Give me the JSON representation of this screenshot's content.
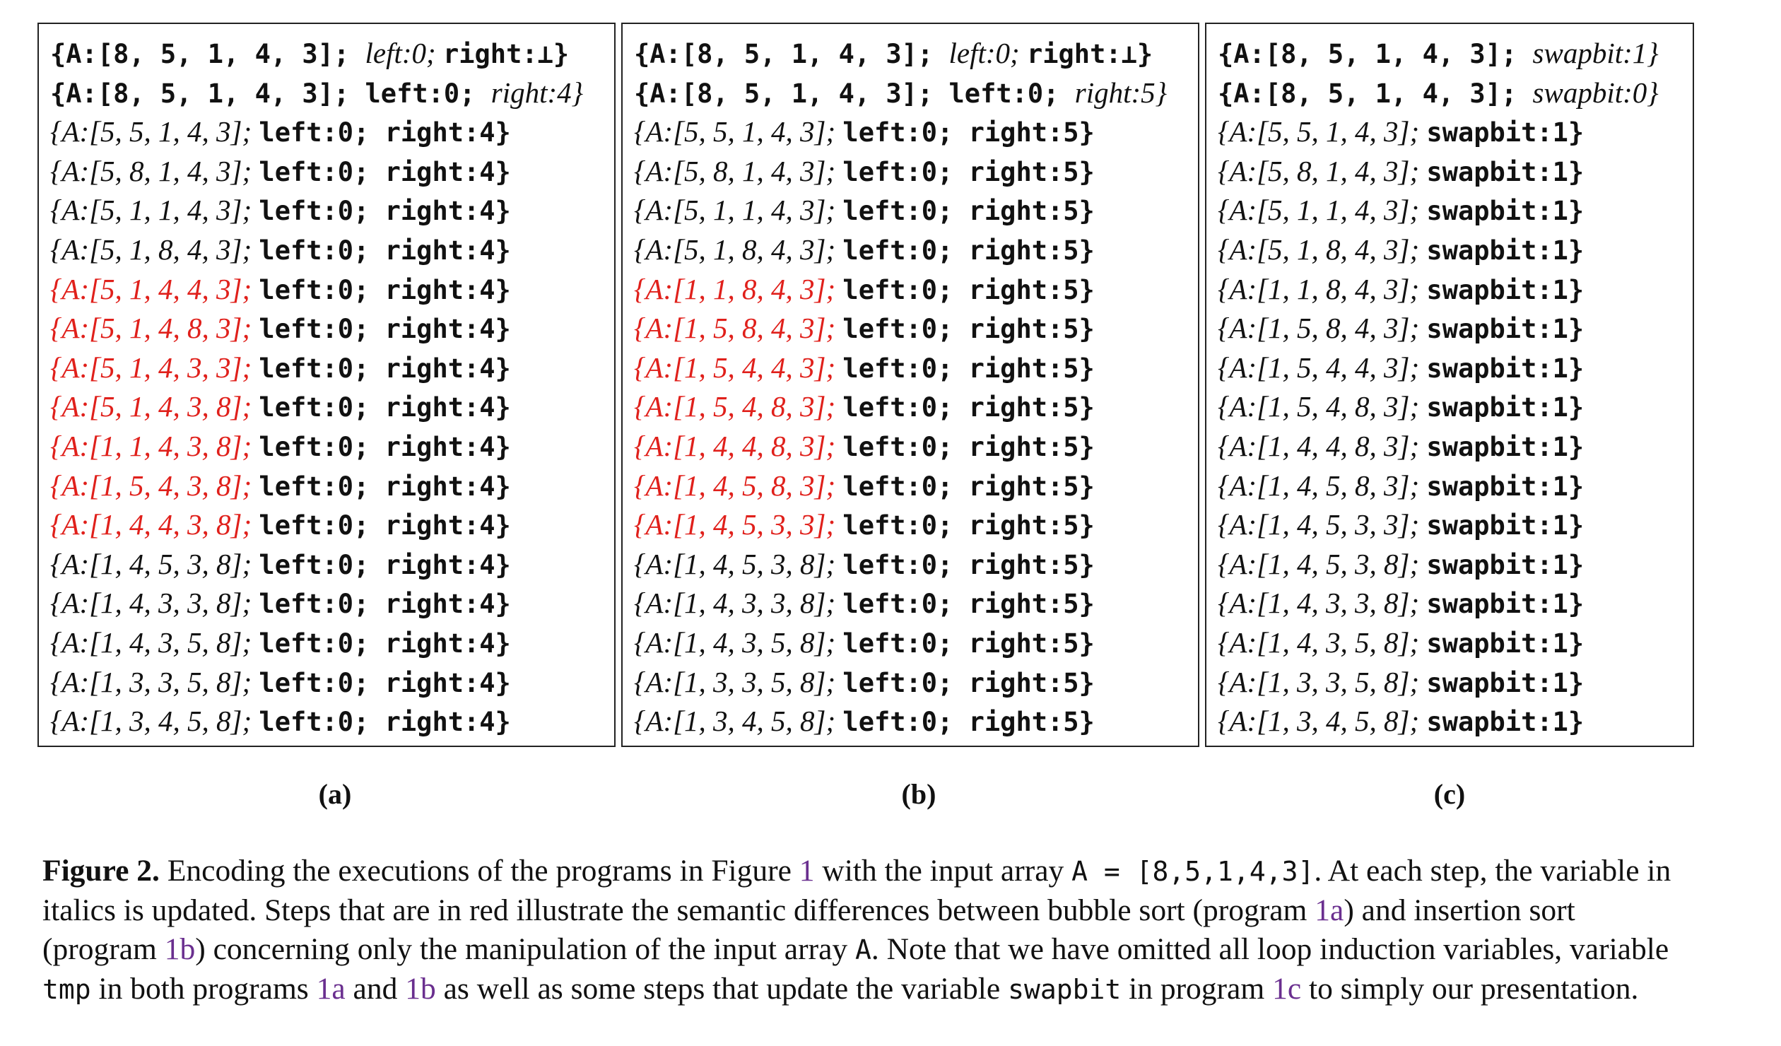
{
  "panels": [
    {
      "id": "a",
      "label": "(a)",
      "rows": [
        {
          "parts": [
            {
              "t": "{A:[8, 5, 1, 4, 3]; ",
              "s": "mono"
            },
            {
              "t": "left:0; ",
              "s": "it"
            },
            {
              "t": "right:⊥}",
              "s": "mono"
            }
          ],
          "red": false
        },
        {
          "parts": [
            {
              "t": "{A:[8, 5, 1, 4, 3]; left:0; ",
              "s": "mono"
            },
            {
              "t": "right:4}",
              "s": "it"
            }
          ],
          "red": false
        },
        {
          "parts": [
            {
              "t": "{A:[5, 5, 1, 4, 3]; ",
              "s": "it"
            },
            {
              "t": "left:0; right:4}",
              "s": "mono"
            }
          ],
          "red": false
        },
        {
          "parts": [
            {
              "t": "{A:[5, 8, 1, 4, 3]; ",
              "s": "it"
            },
            {
              "t": "left:0; right:4}",
              "s": "mono"
            }
          ],
          "red": false
        },
        {
          "parts": [
            {
              "t": "{A:[5, 1, 1, 4, 3]; ",
              "s": "it"
            },
            {
              "t": "left:0; right:4}",
              "s": "mono"
            }
          ],
          "red": false
        },
        {
          "parts": [
            {
              "t": "{A:[5, 1, 8, 4, 3]; ",
              "s": "it"
            },
            {
              "t": "left:0; right:4}",
              "s": "mono"
            }
          ],
          "red": false
        },
        {
          "parts": [
            {
              "t": "{A:[5, 1, 4, 4, 3]; ",
              "s": "it"
            },
            {
              "t": "left:0; right:4}",
              "s": "mono"
            }
          ],
          "red": true
        },
        {
          "parts": [
            {
              "t": "{A:[5, 1, 4, 8, 3]; ",
              "s": "it"
            },
            {
              "t": "left:0; right:4}",
              "s": "mono"
            }
          ],
          "red": true
        },
        {
          "parts": [
            {
              "t": "{A:[5, 1, 4, 3, 3]; ",
              "s": "it"
            },
            {
              "t": "left:0; right:4}",
              "s": "mono"
            }
          ],
          "red": true
        },
        {
          "parts": [
            {
              "t": "{A:[5, 1, 4, 3, 8]; ",
              "s": "it"
            },
            {
              "t": "left:0; right:4}",
              "s": "mono"
            }
          ],
          "red": true
        },
        {
          "parts": [
            {
              "t": "{A:[1, 1, 4, 3, 8]; ",
              "s": "it"
            },
            {
              "t": "left:0; right:4}",
              "s": "mono"
            }
          ],
          "red": true
        },
        {
          "parts": [
            {
              "t": "{A:[1, 5, 4, 3, 8]; ",
              "s": "it"
            },
            {
              "t": "left:0; right:4}",
              "s": "mono"
            }
          ],
          "red": true
        },
        {
          "parts": [
            {
              "t": "{A:[1, 4, 4, 3, 8]; ",
              "s": "it"
            },
            {
              "t": "left:0; right:4}",
              "s": "mono"
            }
          ],
          "red": true
        },
        {
          "parts": [
            {
              "t": "{A:[1, 4, 5, 3, 8]; ",
              "s": "it"
            },
            {
              "t": "left:0; right:4}",
              "s": "mono"
            }
          ],
          "red": false
        },
        {
          "parts": [
            {
              "t": "{A:[1, 4, 3, 3, 8]; ",
              "s": "it"
            },
            {
              "t": "left:0; right:4}",
              "s": "mono"
            }
          ],
          "red": false
        },
        {
          "parts": [
            {
              "t": "{A:[1, 4, 3, 5, 8]; ",
              "s": "it"
            },
            {
              "t": "left:0; right:4}",
              "s": "mono"
            }
          ],
          "red": false
        },
        {
          "parts": [
            {
              "t": "{A:[1, 3, 3, 5, 8]; ",
              "s": "it"
            },
            {
              "t": "left:0; right:4}",
              "s": "mono"
            }
          ],
          "red": false
        },
        {
          "parts": [
            {
              "t": "{A:[1, 3, 4, 5, 8]; ",
              "s": "it"
            },
            {
              "t": "left:0; right:4}",
              "s": "mono"
            }
          ],
          "red": false
        }
      ]
    },
    {
      "id": "b",
      "label": "(b)",
      "rows": [
        {
          "parts": [
            {
              "t": "{A:[8, 5, 1, 4, 3]; ",
              "s": "mono"
            },
            {
              "t": "left:0; ",
              "s": "it"
            },
            {
              "t": "right:⊥}",
              "s": "mono"
            }
          ],
          "red": false
        },
        {
          "parts": [
            {
              "t": "{A:[8, 5, 1, 4, 3]; left:0; ",
              "s": "mono"
            },
            {
              "t": "right:5}",
              "s": "it"
            }
          ],
          "red": false
        },
        {
          "parts": [
            {
              "t": "{A:[5, 5, 1, 4, 3]; ",
              "s": "it"
            },
            {
              "t": "left:0; right:5}",
              "s": "mono"
            }
          ],
          "red": false
        },
        {
          "parts": [
            {
              "t": "{A:[5, 8, 1, 4, 3]; ",
              "s": "it"
            },
            {
              "t": "left:0; right:5}",
              "s": "mono"
            }
          ],
          "red": false
        },
        {
          "parts": [
            {
              "t": "{A:[5, 1, 1, 4, 3]; ",
              "s": "it"
            },
            {
              "t": "left:0; right:5}",
              "s": "mono"
            }
          ],
          "red": false
        },
        {
          "parts": [
            {
              "t": "{A:[5, 1, 8, 4, 3]; ",
              "s": "it"
            },
            {
              "t": "left:0; right:5}",
              "s": "mono"
            }
          ],
          "red": false
        },
        {
          "parts": [
            {
              "t": "{A:[1, 1, 8, 4, 3]; ",
              "s": "it"
            },
            {
              "t": "left:0; right:5}",
              "s": "mono"
            }
          ],
          "red": true
        },
        {
          "parts": [
            {
              "t": "{A:[1, 5, 8, 4, 3]; ",
              "s": "it"
            },
            {
              "t": "left:0; right:5}",
              "s": "mono"
            }
          ],
          "red": true
        },
        {
          "parts": [
            {
              "t": "{A:[1, 5, 4, 4, 3]; ",
              "s": "it"
            },
            {
              "t": "left:0; right:5}",
              "s": "mono"
            }
          ],
          "red": true
        },
        {
          "parts": [
            {
              "t": "{A:[1, 5, 4, 8, 3]; ",
              "s": "it"
            },
            {
              "t": "left:0; right:5}",
              "s": "mono"
            }
          ],
          "red": true
        },
        {
          "parts": [
            {
              "t": "{A:[1, 4, 4, 8, 3]; ",
              "s": "it"
            },
            {
              "t": "left:0; right:5}",
              "s": "mono"
            }
          ],
          "red": true
        },
        {
          "parts": [
            {
              "t": "{A:[1, 4, 5, 8, 3]; ",
              "s": "it"
            },
            {
              "t": "left:0; right:5}",
              "s": "mono"
            }
          ],
          "red": true
        },
        {
          "parts": [
            {
              "t": "{A:[1, 4, 5, 3, 3]; ",
              "s": "it"
            },
            {
              "t": "left:0; right:5}",
              "s": "mono"
            }
          ],
          "red": true
        },
        {
          "parts": [
            {
              "t": "{A:[1, 4, 5, 3, 8]; ",
              "s": "it"
            },
            {
              "t": "left:0; right:5}",
              "s": "mono"
            }
          ],
          "red": false
        },
        {
          "parts": [
            {
              "t": "{A:[1, 4, 3, 3, 8]; ",
              "s": "it"
            },
            {
              "t": "left:0; right:5}",
              "s": "mono"
            }
          ],
          "red": false
        },
        {
          "parts": [
            {
              "t": "{A:[1, 4, 3, 5, 8]; ",
              "s": "it"
            },
            {
              "t": "left:0; right:5}",
              "s": "mono"
            }
          ],
          "red": false
        },
        {
          "parts": [
            {
              "t": "{A:[1, 3, 3, 5, 8]; ",
              "s": "it"
            },
            {
              "t": "left:0; right:5}",
              "s": "mono"
            }
          ],
          "red": false
        },
        {
          "parts": [
            {
              "t": "{A:[1, 3, 4, 5, 8]; ",
              "s": "it"
            },
            {
              "t": "left:0; right:5}",
              "s": "mono"
            }
          ],
          "red": false
        }
      ]
    },
    {
      "id": "c",
      "label": "(c)",
      "rows": [
        {
          "parts": [
            {
              "t": "{A:[8, 5, 1, 4, 3]; ",
              "s": "mono"
            },
            {
              "t": "swapbit:1}",
              "s": "it"
            }
          ],
          "red": false
        },
        {
          "parts": [
            {
              "t": "{A:[8, 5, 1, 4, 3]; ",
              "s": "mono"
            },
            {
              "t": "swapbit:0}",
              "s": "it"
            }
          ],
          "red": false
        },
        {
          "parts": [
            {
              "t": "{A:[5, 5, 1, 4, 3]; ",
              "s": "it"
            },
            {
              "t": "swapbit:1}",
              "s": "mono"
            }
          ],
          "red": false
        },
        {
          "parts": [
            {
              "t": "{A:[5, 8, 1, 4, 3]; ",
              "s": "it"
            },
            {
              "t": "swapbit:1}",
              "s": "mono"
            }
          ],
          "red": false
        },
        {
          "parts": [
            {
              "t": "{A:[5, 1, 1, 4, 3]; ",
              "s": "it"
            },
            {
              "t": "swapbit:1}",
              "s": "mono"
            }
          ],
          "red": false
        },
        {
          "parts": [
            {
              "t": "{A:[5, 1, 8, 4, 3]; ",
              "s": "it"
            },
            {
              "t": "swapbit:1}",
              "s": "mono"
            }
          ],
          "red": false
        },
        {
          "parts": [
            {
              "t": "{A:[1, 1, 8, 4, 3]; ",
              "s": "it"
            },
            {
              "t": "swapbit:1}",
              "s": "mono"
            }
          ],
          "red": false
        },
        {
          "parts": [
            {
              "t": "{A:[1, 5, 8, 4, 3]; ",
              "s": "it"
            },
            {
              "t": "swapbit:1}",
              "s": "mono"
            }
          ],
          "red": false
        },
        {
          "parts": [
            {
              "t": "{A:[1, 5, 4, 4, 3]; ",
              "s": "it"
            },
            {
              "t": "swapbit:1}",
              "s": "mono"
            }
          ],
          "red": false
        },
        {
          "parts": [
            {
              "t": "{A:[1, 5, 4, 8, 3]; ",
              "s": "it"
            },
            {
              "t": "swapbit:1}",
              "s": "mono"
            }
          ],
          "red": false
        },
        {
          "parts": [
            {
              "t": "{A:[1, 4, 4, 8, 3]; ",
              "s": "it"
            },
            {
              "t": "swapbit:1}",
              "s": "mono"
            }
          ],
          "red": false
        },
        {
          "parts": [
            {
              "t": "{A:[1, 4, 5, 8, 3]; ",
              "s": "it"
            },
            {
              "t": "swapbit:1}",
              "s": "mono"
            }
          ],
          "red": false
        },
        {
          "parts": [
            {
              "t": "{A:[1, 4, 5, 3, 3]; ",
              "s": "it"
            },
            {
              "t": "swapbit:1}",
              "s": "mono"
            }
          ],
          "red": false
        },
        {
          "parts": [
            {
              "t": "{A:[1, 4, 5, 3, 8]; ",
              "s": "it"
            },
            {
              "t": "swapbit:1}",
              "s": "mono"
            }
          ],
          "red": false
        },
        {
          "parts": [
            {
              "t": "{A:[1, 4, 3, 3, 8]; ",
              "s": "it"
            },
            {
              "t": "swapbit:1}",
              "s": "mono"
            }
          ],
          "red": false
        },
        {
          "parts": [
            {
              "t": "{A:[1, 4, 3, 5, 8]; ",
              "s": "it"
            },
            {
              "t": "swapbit:1}",
              "s": "mono"
            }
          ],
          "red": false
        },
        {
          "parts": [
            {
              "t": "{A:[1, 3, 3, 5, 8]; ",
              "s": "it"
            },
            {
              "t": "swapbit:1}",
              "s": "mono"
            }
          ],
          "red": false
        },
        {
          "parts": [
            {
              "t": "{A:[1, 3, 4, 5, 8]; ",
              "s": "it"
            },
            {
              "t": "swapbit:1}",
              "s": "mono"
            }
          ],
          "red": false
        }
      ]
    }
  ],
  "caption": {
    "figure_label": "Figure 2.",
    "segments": [
      {
        "t": " Encoding the executions of the programs in Figure ",
        "s": "txt"
      },
      {
        "t": "1",
        "s": "ref"
      },
      {
        "t": " with the input array ",
        "s": "txt"
      },
      {
        "t": "A = [8,5,1,4,3]",
        "s": "code"
      },
      {
        "t": ". At each step, the variable in italics is updated. Steps that are in red illustrate the semantic differences between bubble sort (program ",
        "s": "txt"
      },
      {
        "t": "1a",
        "s": "ref"
      },
      {
        "t": ") and insertion sort (program ",
        "s": "txt"
      },
      {
        "t": "1b",
        "s": "ref"
      },
      {
        "t": ") concerning only the manipulation of the input array ",
        "s": "txt"
      },
      {
        "t": "A",
        "s": "code"
      },
      {
        "t": ". Note that we have omitted all loop induction variables, variable ",
        "s": "txt"
      },
      {
        "t": "tmp",
        "s": "code"
      },
      {
        "t": " in both programs ",
        "s": "txt"
      },
      {
        "t": "1a",
        "s": "ref"
      },
      {
        "t": " and ",
        "s": "txt"
      },
      {
        "t": "1b",
        "s": "ref"
      },
      {
        "t": " as well as some steps that update the variable ",
        "s": "txt"
      },
      {
        "t": "swapbit",
        "s": "code"
      },
      {
        "t": " in program ",
        "s": "txt"
      },
      {
        "t": "1c",
        "s": "ref"
      },
      {
        "t": " to simply our presentation.",
        "s": "txt"
      }
    ]
  }
}
